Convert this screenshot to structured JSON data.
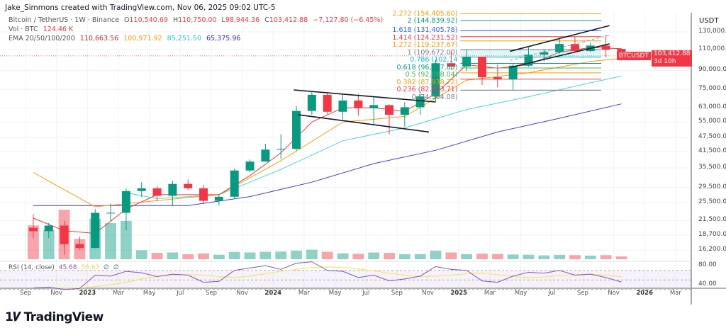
{
  "header": {
    "attribution": "Jake_Simmons created with TradingView.com, Nov 06, 2025 09:02 UTC-5"
  },
  "legend": {
    "symbol": "Bitcoin / TetherUS · 1W · Binance",
    "open_prefix": "O",
    "open": "110,540.69",
    "high_prefix": "H",
    "high": "110,750.00",
    "low_prefix": "L",
    "low": "98,944.36",
    "close_prefix": "C",
    "close": "103,412.88",
    "change": "−7,127.80 (−6.45%)",
    "volume_label": "Vol · BTC",
    "volume": "124.46 K",
    "ema_label": "EMA 20/50/100/200",
    "ema20": "110,663.56",
    "ema50": "100,971.92",
    "ema100": "85,251.50",
    "ema200": "65,375.96"
  },
  "rsi_legend": {
    "label": "RSI (14, close)",
    "rsi": "45.68",
    "ma": "56.63",
    "v3": "∅",
    "v4": "∅"
  },
  "price_axis": {
    "unit": "USDT",
    "ticks": [
      "130,000.00",
      "110,000.00",
      "90,000.00",
      "75,000.00",
      "63,000.00",
      "55,000.00",
      "47,500.00",
      "41,500.00",
      "35,500.00",
      "29,500.00",
      "25,500.00",
      "21,500.00",
      "18,700.00",
      "16,200.00"
    ],
    "rsi_ticks": [
      "80.00",
      "40.00"
    ]
  },
  "current_price": {
    "symbol": "BTCUSDT",
    "price": "103,412.88",
    "countdown": "3d 10h",
    "color": "#f23645"
  },
  "fib_labels": [
    {
      "text": "2.272 (154,405.60)",
      "color": "#ff9800"
    },
    {
      "text": "2 (144,839.92)",
      "color": "#089981"
    },
    {
      "text": "1.618 (131,405.78)",
      "color": "#2962ff"
    },
    {
      "text": "1.414 (124,231.52)",
      "color": "#f23645"
    },
    {
      "text": "1.272 (119,237.67)",
      "color": "#ff9800"
    },
    {
      "text": "1 (109,672.00)",
      "color": "#787b86"
    },
    {
      "text": "0.786 (102,14",
      "color": "#00bcd4"
    },
    {
      "text": "0.618 (96,237.85)",
      "color": "#089981"
    },
    {
      "text": "0.5 (92,088.04)",
      "color": "#4caf50"
    },
    {
      "text": "0.382 (87,938.22)",
      "color": "#ff9800"
    },
    {
      "text": "0.236 (82,803.71)",
      "color": "#f23645"
    },
    {
      "text": "0 (74,504.08)",
      "color": "#787b86"
    }
  ],
  "time_axis": [
    {
      "label": "Sep",
      "date": "2022-09"
    },
    {
      "label": "Nov",
      "date": "2022-11"
    },
    {
      "label": "2023",
      "date": "2023-01",
      "year": true
    },
    {
      "label": "Mar",
      "date": "2023-03"
    },
    {
      "label": "May",
      "date": "2023-05"
    },
    {
      "label": "Jul",
      "date": "2023-07"
    },
    {
      "label": "Sep",
      "date": "2023-09"
    },
    {
      "label": "Nov",
      "date": "2023-11"
    },
    {
      "label": "2024",
      "date": "2024-01",
      "year": true
    },
    {
      "label": "Mar",
      "date": "2024-03"
    },
    {
      "label": "May",
      "date": "2024-05"
    },
    {
      "label": "Jul",
      "date": "2024-07"
    },
    {
      "label": "Sep",
      "date": "2024-09"
    },
    {
      "label": "Nov",
      "date": "2024-11"
    },
    {
      "label": "2025",
      "date": "2025-01",
      "year": true
    },
    {
      "label": "Mar",
      "date": "2025-03"
    },
    {
      "label": "May",
      "date": "2025-05"
    },
    {
      "label": "Jul",
      "date": "2025-07"
    },
    {
      "label": "Sep",
      "date": "2025-09"
    },
    {
      "label": "Nov",
      "date": "2025-11"
    },
    {
      "label": "2026",
      "date": "2026-01",
      "year": true
    },
    {
      "label": "Mar",
      "date": "2026-03"
    }
  ],
  "branding": {
    "logo_text": "TradingView"
  },
  "chart_data": {
    "type": "candlestick",
    "symbol": "BTCUSDT",
    "y_scale": "log",
    "ylim": [
      16200,
      154405.6
    ],
    "grid": true,
    "colors": {
      "up": "#089981",
      "down": "#f23645",
      "ema20": "#e53935",
      "ema50": "#ff9800",
      "ema100": "#4dd0e1",
      "ema200": "#3f3fd8",
      "rsi": "#7e57c2",
      "rsi_ma": "#f5e66b"
    },
    "ohlc": [
      [
        "2022-09",
        20050,
        22800,
        18150,
        19420
      ],
      [
        "2022-10",
        19420,
        20990,
        18190,
        20490
      ],
      [
        "2022-11",
        20490,
        21450,
        15480,
        17160
      ],
      [
        "2022-12",
        17160,
        18390,
        16250,
        16540
      ],
      [
        "2023-01",
        16540,
        23960,
        16500,
        23120
      ],
      [
        "2023-02",
        23120,
        25250,
        21350,
        23140
      ],
      [
        "2023-03",
        23140,
        29190,
        19550,
        28470
      ],
      [
        "2023-04",
        28470,
        31000,
        26940,
        29230
      ],
      [
        "2023-05",
        29230,
        29820,
        25810,
        27210
      ],
      [
        "2023-06",
        27210,
        31390,
        24800,
        30470
      ],
      [
        "2023-07",
        30470,
        31800,
        28860,
        29230
      ],
      [
        "2023-08",
        29230,
        30230,
        25160,
        25940
      ],
      [
        "2023-09",
        25940,
        27490,
        24900,
        26960
      ],
      [
        "2023-10",
        26960,
        35280,
        26540,
        34640
      ],
      [
        "2023-11",
        34640,
        38450,
        34100,
        37720
      ],
      [
        "2023-12",
        37720,
        44700,
        37620,
        42280
      ],
      [
        "2024-01",
        42280,
        48970,
        38550,
        42580
      ],
      [
        "2024-02",
        42580,
        64000,
        41880,
        61130
      ],
      [
        "2024-03",
        61130,
        73780,
        59000,
        71290
      ],
      [
        "2024-04",
        71290,
        72800,
        59190,
        60670
      ],
      [
        "2024-05",
        60670,
        71980,
        56550,
        67540
      ],
      [
        "2024-06",
        67540,
        71980,
        58400,
        62770
      ],
      [
        "2024-07",
        62770,
        70000,
        53500,
        64630
      ],
      [
        "2024-08",
        64630,
        65100,
        49000,
        58970
      ],
      [
        "2024-09",
        58970,
        66500,
        52550,
        63330
      ],
      [
        "2024-10",
        63330,
        73620,
        58900,
        70220
      ],
      [
        "2024-11",
        70220,
        99590,
        66800,
        96400
      ],
      [
        "2024-12",
        96400,
        108350,
        90500,
        93430
      ],
      [
        "2025-01",
        93430,
        109590,
        89160,
        102430
      ],
      [
        "2025-02",
        102430,
        102500,
        78260,
        84350
      ],
      [
        "2025-03",
        84350,
        95000,
        76600,
        82550
      ],
      [
        "2025-04",
        82550,
        95760,
        74500,
        94170
      ],
      [
        "2025-05",
        94170,
        111980,
        93350,
        104600
      ],
      [
        "2025-06",
        104600,
        110600,
        98200,
        107140
      ],
      [
        "2025-07",
        107140,
        123220,
        105250,
        115760
      ],
      [
        "2025-08",
        115760,
        124500,
        107300,
        108240
      ],
      [
        "2025-09",
        108240,
        117900,
        107250,
        114050
      ],
      [
        "2025-10",
        114050,
        126200,
        102000,
        109600
      ],
      [
        "2025-11",
        110540.69,
        110750,
        98944.36,
        103412.88
      ]
    ],
    "volume_k": [
      1500,
      1300,
      2200,
      900,
      1800,
      1600,
      1700,
      400,
      280,
      300,
      220,
      260,
      200,
      320,
      300,
      330,
      340,
      380,
      420,
      330,
      260,
      240,
      300,
      280,
      220,
      230,
      380,
      300,
      220,
      250,
      230,
      210,
      200,
      170,
      190,
      180,
      160,
      180,
      124.46
    ],
    "ema": {
      "ema20": [
        [
          "2022-09",
          22000
        ],
        [
          "2022-11",
          19500
        ],
        [
          "2023-01",
          19000
        ],
        [
          "2023-03",
          24000
        ],
        [
          "2023-05",
          27500
        ],
        [
          "2023-09",
          27500
        ],
        [
          "2023-11",
          33000
        ],
        [
          "2024-01",
          41000
        ],
        [
          "2024-03",
          55000
        ],
        [
          "2024-05",
          63000
        ],
        [
          "2024-07",
          63000
        ],
        [
          "2024-09",
          61000
        ],
        [
          "2024-11",
          72000
        ],
        [
          "2025-01",
          95000
        ],
        [
          "2025-03",
          92000
        ],
        [
          "2025-05",
          95000
        ],
        [
          "2025-07",
          107000
        ],
        [
          "2025-09",
          112000
        ],
        [
          "2025-11",
          110663.56
        ]
      ],
      "ema50": [
        [
          "2022-09",
          34000
        ],
        [
          "2023-01",
          24500
        ],
        [
          "2023-05",
          26000
        ],
        [
          "2023-09",
          27500
        ],
        [
          "2024-01",
          38000
        ],
        [
          "2024-05",
          55000
        ],
        [
          "2024-09",
          58000
        ],
        [
          "2025-01",
          82000
        ],
        [
          "2025-05",
          88000
        ],
        [
          "2025-09",
          98000
        ],
        [
          "2025-11",
          100971.92
        ]
      ],
      "ema100": [
        [
          "2023-03",
          28000
        ],
        [
          "2023-05",
          26500
        ],
        [
          "2023-09",
          27500
        ],
        [
          "2024-01",
          35000
        ],
        [
          "2024-05",
          46000
        ],
        [
          "2024-09",
          52000
        ],
        [
          "2025-01",
          62000
        ],
        [
          "2025-05",
          70000
        ],
        [
          "2025-09",
          80000
        ],
        [
          "2025-11",
          85251.5
        ]
      ],
      "ema200": [
        [
          "2022-09",
          24800
        ],
        [
          "2023-07",
          24800
        ],
        [
          "2023-11",
          27000
        ],
        [
          "2024-03",
          31000
        ],
        [
          "2024-07",
          37000
        ],
        [
          "2024-11",
          42000
        ],
        [
          "2025-03",
          50000
        ],
        [
          "2025-07",
          57000
        ],
        [
          "2025-11",
          65375.96
        ]
      ]
    },
    "fib_levels": [
      [
        2.272,
        154405.6
      ],
      [
        2,
        144839.92
      ],
      [
        1.618,
        131405.78
      ],
      [
        1.414,
        124231.52
      ],
      [
        1.272,
        119237.67
      ],
      [
        1,
        109672
      ],
      [
        0.786,
        102146
      ],
      [
        0.618,
        96237.85
      ],
      [
        0.5,
        92088.04
      ],
      [
        0.382,
        87938.22
      ],
      [
        0.236,
        82803.71
      ],
      [
        0,
        74504.08
      ]
    ],
    "fib_range": [
      "2025-01-04",
      "2025-10-07"
    ],
    "trendlines": [
      {
        "style": "solid",
        "points": [
          [
            "2024-02-11",
            74700
          ],
          [
            "2024-11-16",
            66600
          ]
        ]
      },
      {
        "style": "solid",
        "points": [
          [
            "2024-02-19",
            59000
          ],
          [
            "2024-11-03",
            50000
          ]
        ]
      },
      {
        "style": "solid",
        "points": [
          [
            "2025-04-10",
            108000
          ],
          [
            "2025-10-23",
            138000
          ]
        ]
      },
      {
        "style": "solid",
        "points": [
          [
            "2025-04-10",
            92500
          ],
          [
            "2025-10-23",
            116000
          ]
        ]
      },
      {
        "style": "dashed",
        "points": [
          [
            "2025-04-10",
            99000
          ],
          [
            "2025-10-23",
            126000
          ]
        ]
      }
    ],
    "rsi": {
      "period": 14,
      "values": [
        33,
        35,
        30,
        32,
        60,
        58,
        68,
        65,
        57,
        62,
        60,
        45,
        47,
        70,
        75,
        80,
        72,
        85,
        88,
        70,
        68,
        55,
        60,
        48,
        52,
        58,
        78,
        72,
        70,
        48,
        45,
        58,
        66,
        64,
        70,
        60,
        62,
        55,
        45.68
      ],
      "ma_values": [
        34,
        34,
        33,
        33,
        36,
        40,
        45,
        52,
        57,
        60,
        61,
        60,
        57,
        55,
        58,
        63,
        68,
        72,
        76,
        77,
        76,
        73,
        69,
        64,
        60,
        57,
        58,
        60,
        63,
        64,
        61,
        57,
        55,
        56,
        59,
        61,
        62,
        60,
        56.63
      ],
      "bands": [
        70,
        50,
        30
      ],
      "ylim": [
        20,
        95
      ]
    }
  }
}
